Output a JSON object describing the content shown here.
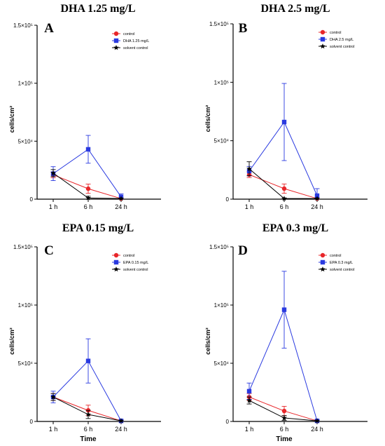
{
  "chart_data": [
    {
      "type": "line",
      "title": "DHA 1.25 mg/L",
      "panel_label": "A",
      "categories": [
        "1 h",
        "6 h",
        "24 h"
      ],
      "ylabel": "cells/cm²",
      "xlabel": "",
      "ylim": [
        0,
        150000
      ],
      "yticks": [
        {
          "value": 0,
          "label": "0"
        },
        {
          "value": 50000,
          "label": "5×10⁴"
        },
        {
          "value": 100000,
          "label": "1×10⁵"
        },
        {
          "value": 150000,
          "label": "1.5×10⁵"
        }
      ],
      "legend_position": "top-right",
      "series": [
        {
          "name": "control",
          "color": "#e8262a",
          "marker": "circle",
          "values": [
            21000,
            9000,
            500
          ],
          "errors": [
            2500,
            4000,
            500
          ]
        },
        {
          "name": "DHA 1.25 mg/L",
          "color": "#2a3ae0",
          "marker": "square",
          "values": [
            22000,
            43000,
            2000
          ],
          "errors": [
            6000,
            12000,
            2500
          ]
        },
        {
          "name": "solvent control",
          "color": "#000000",
          "marker": "star",
          "values": [
            22500,
            1000,
            500
          ],
          "errors": [
            3000,
            1500,
            500
          ]
        }
      ]
    },
    {
      "type": "line",
      "title": "DHA 2.5 mg/L",
      "panel_label": "B",
      "categories": [
        "1 h",
        "6 h",
        "24 h"
      ],
      "ylabel": "cells/cm²",
      "xlabel": "",
      "ylim": [
        0,
        150000
      ],
      "yticks": [
        {
          "value": 0,
          "label": "0"
        },
        {
          "value": 50000,
          "label": "5×10⁴"
        },
        {
          "value": 100000,
          "label": "1×10⁵"
        },
        {
          "value": 150000,
          "label": "1.5×10⁵"
        }
      ],
      "legend_position": "top-right",
      "series": [
        {
          "name": "control",
          "color": "#e8262a",
          "marker": "circle",
          "values": [
            21000,
            9000,
            500
          ],
          "errors": [
            2500,
            4000,
            500
          ]
        },
        {
          "name": "DHA 2.5 mg/L",
          "color": "#2a3ae0",
          "marker": "square",
          "values": [
            24000,
            66000,
            3000
          ],
          "errors": [
            4000,
            33000,
            6000
          ]
        },
        {
          "name": "solvent control",
          "color": "#000000",
          "marker": "star",
          "values": [
            26000,
            500,
            500
          ],
          "errors": [
            6000,
            500,
            500
          ]
        }
      ]
    },
    {
      "type": "line",
      "title": "EPA 0.15 mg/L",
      "panel_label": "C",
      "categories": [
        "1 h",
        "6 h",
        "24 h"
      ],
      "ylabel": "cells/cm²",
      "xlabel": "Time",
      "ylim": [
        0,
        150000
      ],
      "yticks": [
        {
          "value": 0,
          "label": "0"
        },
        {
          "value": 50000,
          "label": "5×10⁴"
        },
        {
          "value": 100000,
          "label": "1×10⁵"
        },
        {
          "value": 150000,
          "label": "1.5×10⁵"
        }
      ],
      "legend_position": "top-right",
      "series": [
        {
          "name": "control",
          "color": "#e8262a",
          "marker": "circle",
          "values": [
            21000,
            9500,
            500
          ],
          "errors": [
            3000,
            4500,
            500
          ]
        },
        {
          "name": "EPA 0.15 mg/L",
          "color": "#2a3ae0",
          "marker": "square",
          "values": [
            21000,
            52000,
            500
          ],
          "errors": [
            5000,
            19000,
            500
          ]
        },
        {
          "name": "solvent control",
          "color": "#000000",
          "marker": "star",
          "values": [
            21000,
            6000,
            500
          ],
          "errors": [
            3000,
            3500,
            500
          ]
        }
      ]
    },
    {
      "type": "line",
      "title": "EPA 0.3 mg/L",
      "panel_label": "D",
      "categories": [
        "1 h",
        "6 h",
        "24 h"
      ],
      "ylabel": "cells/cm²",
      "xlabel": "Time",
      "ylim": [
        0,
        150000
      ],
      "yticks": [
        {
          "value": 0,
          "label": "0"
        },
        {
          "value": 50000,
          "label": "5×10⁴"
        },
        {
          "value": 100000,
          "label": "1×10⁵"
        },
        {
          "value": 150000,
          "label": "1.5×10⁵"
        }
      ],
      "legend_position": "top-right",
      "series": [
        {
          "name": "control",
          "color": "#e8262a",
          "marker": "circle",
          "values": [
            21000,
            9000,
            500
          ],
          "errors": [
            3000,
            4000,
            500
          ]
        },
        {
          "name": "EPA 0.3 mg/L",
          "color": "#2a3ae0",
          "marker": "square",
          "values": [
            26000,
            96000,
            500
          ],
          "errors": [
            7000,
            33000,
            500
          ]
        },
        {
          "name": "solvent control",
          "color": "#000000",
          "marker": "star",
          "values": [
            18000,
            3000,
            500
          ],
          "errors": [
            3000,
            2000,
            500
          ]
        }
      ]
    }
  ]
}
